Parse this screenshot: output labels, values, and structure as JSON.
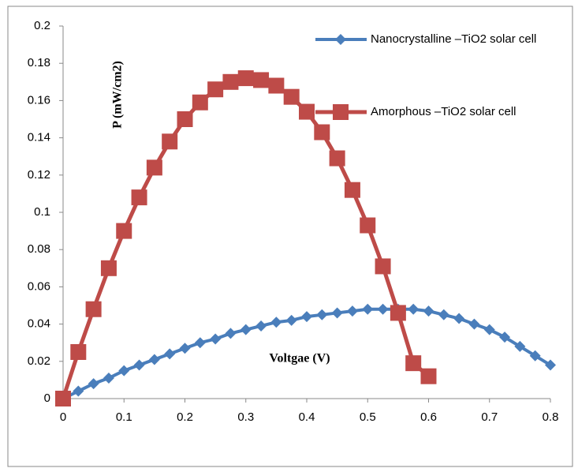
{
  "chart_data": {
    "type": "line",
    "xlabel": "Voltgae (V)",
    "ylabel": "P (mW/cm2)",
    "xlim": [
      0,
      0.8
    ],
    "xticks": [
      0,
      0.1,
      0.2,
      0.3,
      0.4,
      0.5,
      0.6,
      0.7,
      0.8
    ],
    "ylim": [
      0,
      0.2
    ],
    "yticks": [
      0,
      0.02,
      0.04,
      0.06,
      0.08,
      0.1,
      0.12,
      0.14,
      0.16,
      0.18,
      0.2
    ],
    "grid": false,
    "legend": "upper right",
    "series": [
      {
        "name": "Nanocrystalline –TiO2 solar cell",
        "color": "#4a7ebb",
        "marker": "diamond",
        "x": [
          0,
          0.025,
          0.05,
          0.075,
          0.1,
          0.125,
          0.15,
          0.175,
          0.2,
          0.225,
          0.25,
          0.275,
          0.3,
          0.325,
          0.35,
          0.375,
          0.4,
          0.425,
          0.45,
          0.475,
          0.5,
          0.525,
          0.55,
          0.575,
          0.6,
          0.625,
          0.65,
          0.675,
          0.7,
          0.725,
          0.75,
          0.775,
          0.8
        ],
        "values": [
          0,
          0.004,
          0.008,
          0.011,
          0.015,
          0.018,
          0.021,
          0.024,
          0.027,
          0.03,
          0.032,
          0.035,
          0.037,
          0.039,
          0.041,
          0.042,
          0.044,
          0.045,
          0.046,
          0.047,
          0.048,
          0.048,
          0.048,
          0.048,
          0.047,
          0.045,
          0.043,
          0.04,
          0.037,
          0.033,
          0.028,
          0.023,
          0.018
        ]
      },
      {
        "name": "Amorphous –TiO2 solar cell",
        "color": "#be4b48",
        "marker": "square",
        "x": [
          0,
          0.025,
          0.05,
          0.075,
          0.1,
          0.125,
          0.15,
          0.175,
          0.2,
          0.225,
          0.25,
          0.275,
          0.3,
          0.325,
          0.35,
          0.375,
          0.4,
          0.425,
          0.45,
          0.475,
          0.5,
          0.525,
          0.55,
          0.575,
          0.6
        ],
        "values": [
          0,
          0.025,
          0.048,
          0.07,
          0.09,
          0.108,
          0.124,
          0.138,
          0.15,
          0.159,
          0.166,
          0.17,
          0.172,
          0.171,
          0.168,
          0.162,
          0.154,
          0.143,
          0.129,
          0.112,
          0.093,
          0.071,
          0.046,
          0.019,
          0.012
        ]
      }
    ]
  }
}
